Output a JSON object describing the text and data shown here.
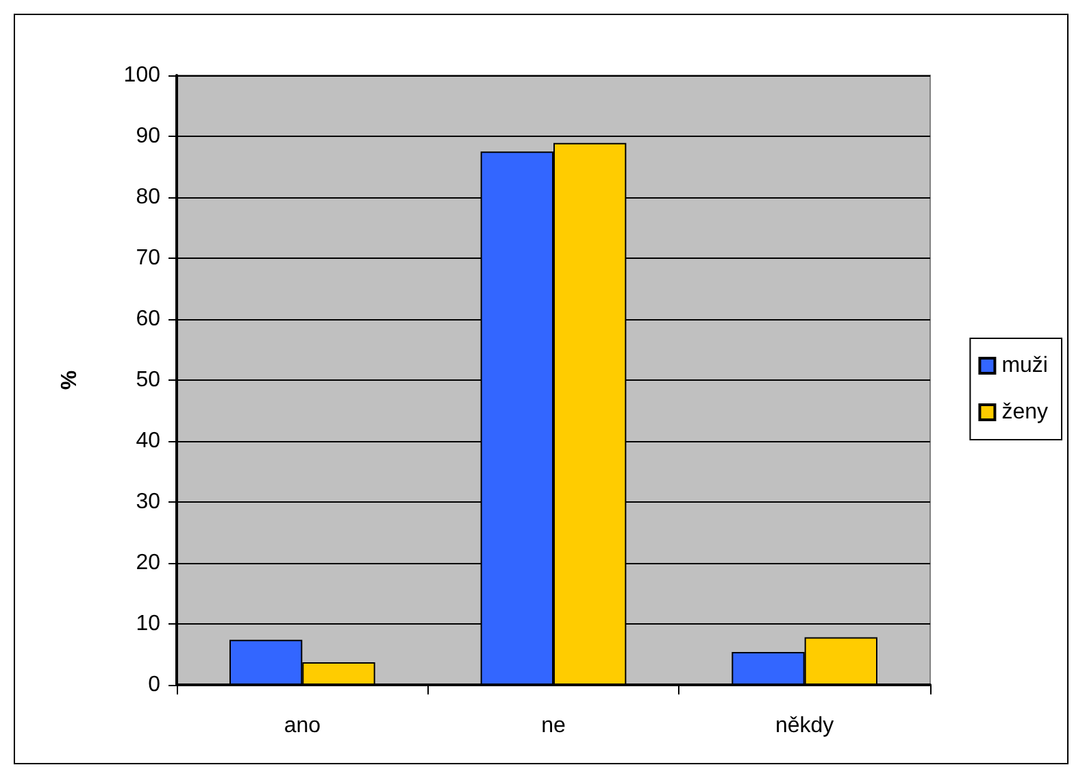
{
  "chart_data": {
    "type": "bar",
    "ylabel": "%",
    "categories": [
      "ano",
      "ne",
      "někdy"
    ],
    "series": [
      {
        "name": "muži",
        "color": "#3366ff",
        "values": [
          7.4,
          87.5,
          5.4
        ]
      },
      {
        "name": "ženy",
        "color": "#ffcc00",
        "values": [
          3.7,
          88.9,
          7.8
        ]
      }
    ],
    "ylim": [
      0,
      100
    ],
    "yticks": [
      0,
      10,
      20,
      30,
      40,
      50,
      60,
      70,
      80,
      90,
      100
    ],
    "grid": "y",
    "legend": "right"
  }
}
